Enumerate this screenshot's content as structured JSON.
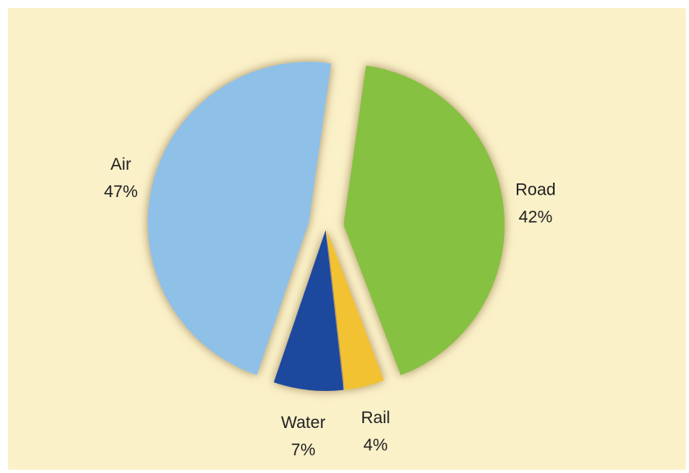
{
  "chart_data": {
    "type": "pie",
    "categories": [
      "Road",
      "Rail",
      "Water",
      "Air"
    ],
    "values": [
      42,
      4,
      7,
      47
    ],
    "value_labels": [
      "42%",
      "4%",
      "7%",
      "47%"
    ],
    "colors": [
      "#86c143",
      "#f2c230",
      "#1c4a9e",
      "#8fc1e8"
    ]
  }
}
